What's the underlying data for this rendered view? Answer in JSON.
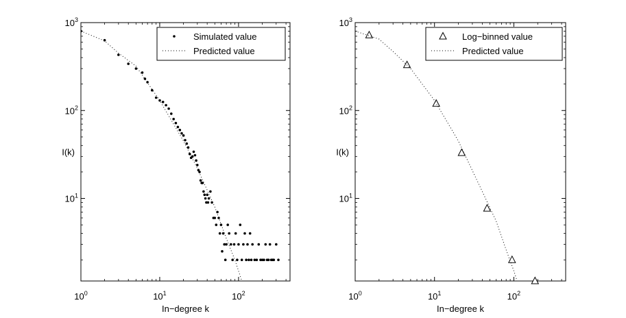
{
  "chart_data": [
    {
      "type": "scatter",
      "xscale": "log",
      "yscale": "log",
      "xlim": [
        1,
        450
      ],
      "ylim": [
        1.15,
        1000
      ],
      "xlabel": "In−degree k",
      "ylabel": "I(k)",
      "xticks": [
        {
          "value": 1,
          "base": "10",
          "exp": "0"
        },
        {
          "value": 10,
          "base": "10",
          "exp": "1"
        },
        {
          "value": 100,
          "base": "10",
          "exp": "2"
        }
      ],
      "yticks": [
        {
          "value": 10,
          "base": "10",
          "exp": "1"
        },
        {
          "value": 100,
          "base": "10",
          "exp": "2"
        },
        {
          "value": 1000,
          "base": "10",
          "exp": "3"
        }
      ],
      "grid": false,
      "legend": {
        "placement": "top-right"
      },
      "series": [
        {
          "name": "Simulated value",
          "marker": "dot",
          "points": [
            [
              1,
              800
            ],
            [
              2,
              630
            ],
            [
              3,
              430
            ],
            [
              4,
              340
            ],
            [
              5,
              300
            ],
            [
              6,
              270
            ],
            [
              6.5,
              230
            ],
            [
              7,
              210
            ],
            [
              8,
              170
            ],
            [
              9,
              140
            ],
            [
              10,
              130
            ],
            [
              11,
              125
            ],
            [
              12,
              115
            ],
            [
              13,
              105
            ],
            [
              14,
              92
            ],
            [
              15,
              80
            ],
            [
              16,
              72
            ],
            [
              17,
              65
            ],
            [
              18,
              60
            ],
            [
              19,
              55
            ],
            [
              20,
              52
            ],
            [
              21,
              46
            ],
            [
              22,
              42
            ],
            [
              23,
              38
            ],
            [
              24,
              32
            ],
            [
              25,
              29
            ],
            [
              26,
              30
            ],
            [
              27,
              34
            ],
            [
              28,
              31
            ],
            [
              29,
              27
            ],
            [
              30,
              24
            ],
            [
              31,
              21
            ],
            [
              32,
              20
            ],
            [
              33,
              16
            ],
            [
              34,
              15
            ],
            [
              35,
              15
            ],
            [
              36,
              12
            ],
            [
              37,
              11
            ],
            [
              38,
              10
            ],
            [
              39,
              9
            ],
            [
              40,
              11
            ],
            [
              41,
              9
            ],
            [
              42,
              10
            ],
            [
              44,
              12
            ],
            [
              46,
              9
            ],
            [
              48,
              6
            ],
            [
              50,
              6
            ],
            [
              52,
              5
            ],
            [
              54,
              7
            ],
            [
              56,
              6
            ],
            [
              58,
              4
            ],
            [
              60,
              5
            ],
            [
              62,
              2.5
            ],
            [
              64,
              4
            ],
            [
              66,
              3
            ],
            [
              68,
              2
            ],
            [
              70,
              3
            ],
            [
              73,
              5
            ],
            [
              76,
              4
            ],
            [
              80,
              3
            ],
            [
              84,
              2
            ],
            [
              88,
              3
            ],
            [
              92,
              4
            ],
            [
              96,
              2
            ],
            [
              100,
              3
            ],
            [
              105,
              5
            ],
            [
              110,
              2
            ],
            [
              115,
              3
            ],
            [
              120,
              4
            ],
            [
              125,
              2
            ],
            [
              130,
              3
            ],
            [
              135,
              2
            ],
            [
              140,
              4
            ],
            [
              145,
              2
            ],
            [
              150,
              3
            ],
            [
              160,
              2
            ],
            [
              170,
              2
            ],
            [
              180,
              3
            ],
            [
              190,
              2
            ],
            [
              200,
              2
            ],
            [
              210,
              2
            ],
            [
              220,
              3
            ],
            [
              230,
              2
            ],
            [
              240,
              2
            ],
            [
              250,
              3
            ],
            [
              260,
              2
            ],
            [
              270,
              2
            ],
            [
              280,
              2
            ],
            [
              300,
              3
            ],
            [
              320,
              2
            ]
          ]
        },
        {
          "name": "Predicted value",
          "style": "dotted",
          "points": [
            [
              1,
              800
            ],
            [
              2,
              620
            ],
            [
              3,
              450
            ],
            [
              5,
              320
            ],
            [
              10,
              130
            ],
            [
              20,
              45
            ],
            [
              30,
              22
            ],
            [
              50,
              8
            ],
            [
              70,
              3.5
            ],
            [
              90,
              2.0
            ],
            [
              110,
              1.15
            ]
          ]
        }
      ]
    },
    {
      "type": "scatter",
      "xscale": "log",
      "yscale": "log",
      "xlim": [
        1,
        450
      ],
      "ylim": [
        1.15,
        1000
      ],
      "xlabel": "In−degree k",
      "ylabel": "I(k)",
      "xticks": [
        {
          "value": 1,
          "base": "10",
          "exp": "0"
        },
        {
          "value": 10,
          "base": "10",
          "exp": "1"
        },
        {
          "value": 100,
          "base": "10",
          "exp": "2"
        }
      ],
      "yticks": [
        {
          "value": 10,
          "base": "10",
          "exp": "1"
        },
        {
          "value": 100,
          "base": "10",
          "exp": "2"
        },
        {
          "value": 1000,
          "base": "10",
          "exp": "3"
        }
      ],
      "grid": false,
      "legend": {
        "placement": "top-right"
      },
      "series": [
        {
          "name": "Log−binned value",
          "marker": "triangle",
          "points": [
            [
              1.5,
              720
            ],
            [
              4.5,
              330
            ],
            [
              10.5,
              120
            ],
            [
              22,
              33
            ],
            [
              46,
              7.7
            ],
            [
              95,
              2.0
            ],
            [
              185,
              1.15
            ]
          ]
        },
        {
          "name": "Predicted value",
          "style": "dotted",
          "points": [
            [
              1,
              800
            ],
            [
              2,
              650
            ],
            [
              3,
              470
            ],
            [
              5,
              300
            ],
            [
              10,
              130
            ],
            [
              20,
              45
            ],
            [
              40,
              12
            ],
            [
              60,
              5.5
            ],
            [
              80,
              2.6
            ],
            [
              100,
              1.5
            ],
            [
              110,
              1.15
            ]
          ]
        }
      ]
    }
  ]
}
